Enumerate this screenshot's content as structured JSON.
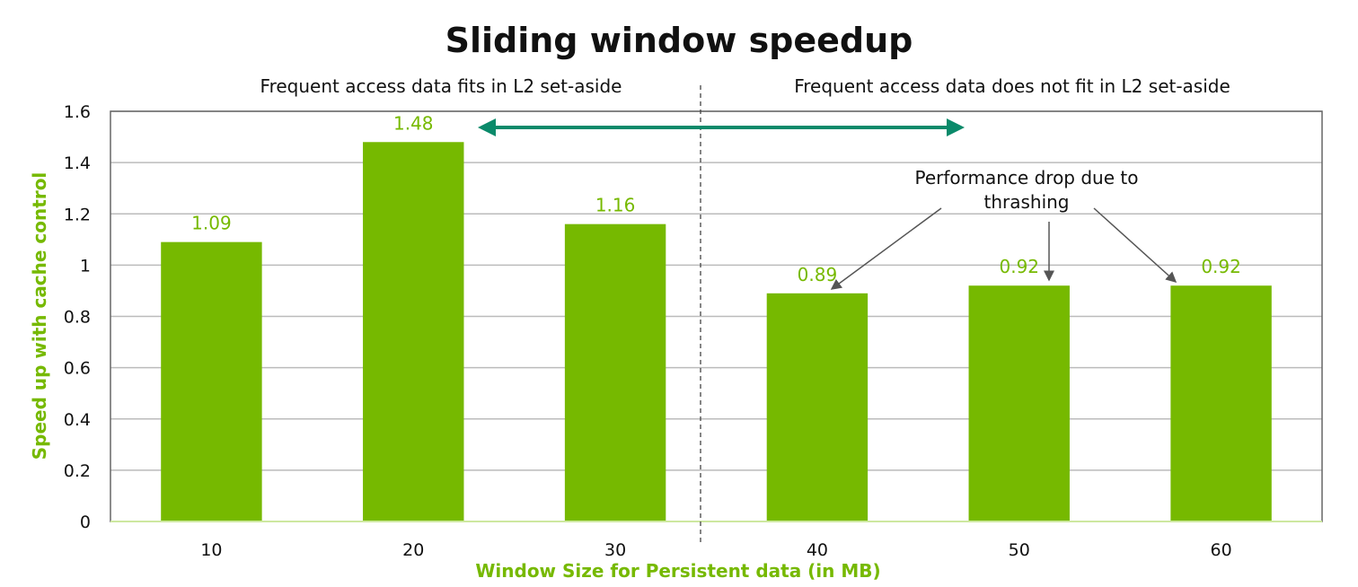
{
  "chart_data": {
    "type": "bar",
    "title": "Sliding window speedup",
    "xlabel": "Window Size for Persistent data (in MB)",
    "ylabel": "Speed up with cache control",
    "categories": [
      "10",
      "20",
      "30",
      "40",
      "50",
      "60"
    ],
    "values": [
      1.09,
      1.48,
      1.16,
      0.89,
      0.92,
      0.92
    ],
    "data_labels": [
      "1.09",
      "1.48",
      "1.16",
      "0.89",
      "0.92",
      "0.92"
    ],
    "ylim": [
      0,
      1.6
    ],
    "yticks": [
      "0",
      "0.2",
      "0.4",
      "0.6",
      "0.8",
      "1",
      "1.2",
      "1.4",
      "1.6"
    ],
    "grid": true,
    "bar_color": "#76b900",
    "arrow_color": "#0a8a6a",
    "annotations": {
      "region_left": "Frequent access data fits in L2 set-aside",
      "region_right": "Frequent access data does not fit in L2 set-aside",
      "drop_line1": "Performance drop due to",
      "drop_line2": "thrashing"
    }
  }
}
